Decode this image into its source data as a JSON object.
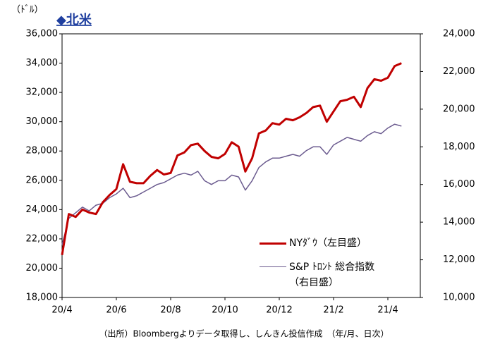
{
  "chart_data": {
    "type": "line",
    "title": "◆北米",
    "y_label": "（ﾄﾞﾙ）",
    "note": "（出所）Bloombergよりデータ取得し、しんきん投信作成　（年/月、日次）",
    "categories": [
      "20/4",
      null,
      null,
      null,
      null,
      null,
      null,
      null,
      "20/6",
      null,
      null,
      null,
      null,
      null,
      null,
      null,
      "20/8",
      null,
      null,
      null,
      null,
      null,
      null,
      null,
      "20/10",
      null,
      null,
      null,
      null,
      null,
      null,
      null,
      "20/12",
      null,
      null,
      null,
      null,
      null,
      null,
      null,
      "21/2",
      null,
      null,
      null,
      null,
      null,
      null,
      null,
      "21/4",
      null,
      null
    ],
    "series": [
      {
        "name": "NYﾀﾞｳ（左目盛）",
        "color": "#c00000",
        "axis": "y",
        "values": [
          20900,
          23700,
          23500,
          24000,
          23800,
          23700,
          24500,
          25000,
          25400,
          27100,
          25900,
          25800,
          25800,
          26300,
          26700,
          26400,
          26500,
          27700,
          27900,
          28400,
          28500,
          28000,
          27600,
          27500,
          27800,
          28600,
          28300,
          26600,
          27500,
          29200,
          29400,
          29900,
          29800,
          30200,
          30100,
          30300,
          30600,
          31000,
          31100,
          30000,
          30700,
          31400,
          31500,
          31700,
          31000,
          32300,
          32900,
          32800,
          33000,
          33800,
          34000
        ]
      },
      {
        "name": "S&P ﾄﾛﾝﾄ 総合指数\n（右目盛）",
        "color": "#6b5b8f",
        "axis": "y2",
        "values": [
          12800,
          14200,
          14500,
          14800,
          14600,
          14900,
          15000,
          15300,
          15500,
          15800,
          15300,
          15400,
          15600,
          15800,
          16000,
          16100,
          16300,
          16500,
          16600,
          16500,
          16700,
          16200,
          16000,
          16200,
          16200,
          16500,
          16400,
          15700,
          16200,
          16900,
          17200,
          17400,
          17400,
          17500,
          17600,
          17500,
          17800,
          18000,
          18000,
          17600,
          18100,
          18300,
          18500,
          18400,
          18300,
          18600,
          18800,
          18700,
          19000,
          19200,
          19100
        ]
      }
    ],
    "ylim": [
      18000,
      36000
    ],
    "yticks": [
      {
        "value": 18000,
        "label": "18,000"
      },
      {
        "value": 20000,
        "label": "20,000"
      },
      {
        "value": 22000,
        "label": "22,000"
      },
      {
        "value": 24000,
        "label": "24,000"
      },
      {
        "value": 26000,
        "label": "26,000"
      },
      {
        "value": 28000,
        "label": "28,000"
      },
      {
        "value": 30000,
        "label": "30,000"
      },
      {
        "value": 32000,
        "label": "32,000"
      },
      {
        "value": 34000,
        "label": "34,000"
      },
      {
        "value": 36000,
        "label": "36,000"
      }
    ],
    "y2lim": [
      10000,
      24000
    ],
    "y2ticks": [
      {
        "value": 10000,
        "label": "10,000"
      },
      {
        "value": 12000,
        "label": "12,000"
      },
      {
        "value": 14000,
        "label": "14,000"
      },
      {
        "value": 16000,
        "label": "16,000"
      },
      {
        "value": 18000,
        "label": "18,000"
      },
      {
        "value": 20000,
        "label": "20,000"
      },
      {
        "value": 22000,
        "label": "22,000"
      },
      {
        "value": 24000,
        "label": "24,000"
      }
    ],
    "grid": false
  }
}
